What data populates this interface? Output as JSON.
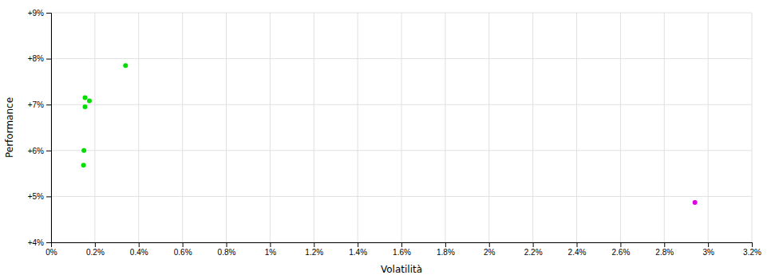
{
  "chart_data": {
    "type": "scatter",
    "xlabel": "Volatilità",
    "ylabel": "Performance",
    "xlim": [
      0.0,
      0.032
    ],
    "ylim": [
      0.04,
      0.09
    ],
    "xticks": [
      {
        "value": 0.0,
        "label": "0%"
      },
      {
        "value": 0.002,
        "label": "0.2%"
      },
      {
        "value": 0.004,
        "label": "0.4%"
      },
      {
        "value": 0.006,
        "label": "0.6%"
      },
      {
        "value": 0.008,
        "label": "0.8%"
      },
      {
        "value": 0.01,
        "label": "1%"
      },
      {
        "value": 0.012,
        "label": "1.2%"
      },
      {
        "value": 0.014,
        "label": "1.4%"
      },
      {
        "value": 0.016,
        "label": "1.6%"
      },
      {
        "value": 0.018,
        "label": "1.8%"
      },
      {
        "value": 0.02,
        "label": "2%"
      },
      {
        "value": 0.022,
        "label": "2.2%"
      },
      {
        "value": 0.024,
        "label": "2.4%"
      },
      {
        "value": 0.026,
        "label": "2.6%"
      },
      {
        "value": 0.028,
        "label": "2.8%"
      },
      {
        "value": 0.03,
        "label": "3%"
      },
      {
        "value": 0.032,
        "label": "3.2%"
      }
    ],
    "yticks": [
      {
        "value": 0.04,
        "label": "+4%"
      },
      {
        "value": 0.05,
        "label": "+5%"
      },
      {
        "value": 0.06,
        "label": "+6%"
      },
      {
        "value": 0.07,
        "label": "+7%"
      },
      {
        "value": 0.08,
        "label": "+8%"
      },
      {
        "value": 0.09,
        "label": "+9%"
      }
    ],
    "grid": true,
    "series": [
      {
        "color": "#00dd00",
        "x": [
          0.00155,
          0.00175,
          0.00155,
          0.0015,
          0.00148,
          0.0034
        ],
        "values": [
          0.0695,
          0.0708,
          0.0715,
          0.06,
          0.0568,
          0.0785
        ]
      },
      {
        "color": "#dd00dd",
        "x": [
          0.0294
        ],
        "values": [
          0.0487
        ]
      }
    ]
  }
}
